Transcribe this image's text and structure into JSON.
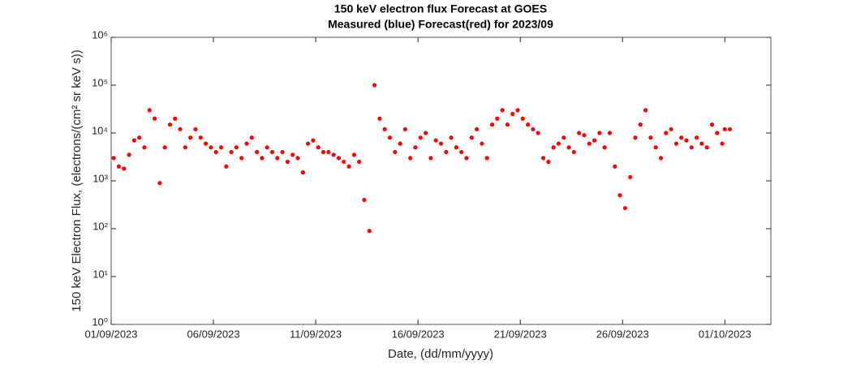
{
  "chart_data": {
    "type": "scatter",
    "title": "150 keV electron flux Forecast at GOES",
    "subtitle": "Measured (blue) Forecast(red) for 2023/09",
    "x_label": "Date, (dd/mm/yyyy)",
    "y_label": "150 keV Electron Flux, (electrons/(cm² sr keV s))",
    "log_scale_y": true,
    "xlim": [
      "2023-09-01T00:00",
      "2023-10-03T06:00"
    ],
    "ylim": [
      1,
      1000000
    ],
    "xticks": [
      {
        "value": "2023-09-01T00:00",
        "label": "01/09/2023"
      },
      {
        "value": "2023-09-06T00:00",
        "label": "06/09/2023"
      },
      {
        "value": "2023-09-11T00:00",
        "label": "11/09/2023"
      },
      {
        "value": "2023-09-16T00:00",
        "label": "16/09/2023"
      },
      {
        "value": "2023-09-21T00:00",
        "label": "21/09/2023"
      },
      {
        "value": "2023-09-26T00:00",
        "label": "26/09/2023"
      },
      {
        "value": "2023-10-01T00:00",
        "label": "01/10/2023"
      }
    ],
    "yticks": [
      {
        "value": 1,
        "label": "10⁰"
      },
      {
        "value": 10,
        "label": "10¹"
      },
      {
        "value": 100,
        "label": "10²"
      },
      {
        "value": 1000,
        "label": "10³"
      },
      {
        "value": 10000,
        "label": "10⁴"
      },
      {
        "value": 100000,
        "label": "10⁵"
      },
      {
        "value": 1000000,
        "label": "10⁶"
      }
    ],
    "series": [
      {
        "name": "Forecast",
        "color": "#ff0000",
        "x": [
          "2023-09-01T03:00",
          "2023-09-01T09:00",
          "2023-09-01T15:00",
          "2023-09-01T21:00",
          "2023-09-02T03:00",
          "2023-09-02T09:00",
          "2023-09-02T15:00",
          "2023-09-02T21:00",
          "2023-09-03T03:00",
          "2023-09-03T09:00",
          "2023-09-03T15:00",
          "2023-09-03T21:00",
          "2023-09-04T03:00",
          "2023-09-04T09:00",
          "2023-09-04T15:00",
          "2023-09-04T21:00",
          "2023-09-05T03:00",
          "2023-09-05T09:00",
          "2023-09-05T15:00",
          "2023-09-05T21:00",
          "2023-09-06T03:00",
          "2023-09-06T09:00",
          "2023-09-06T15:00",
          "2023-09-06T21:00",
          "2023-09-07T03:00",
          "2023-09-07T09:00",
          "2023-09-07T15:00",
          "2023-09-07T21:00",
          "2023-09-08T03:00",
          "2023-09-08T09:00",
          "2023-09-08T15:00",
          "2023-09-08T21:00",
          "2023-09-09T03:00",
          "2023-09-09T09:00",
          "2023-09-09T15:00",
          "2023-09-09T21:00",
          "2023-09-10T03:00",
          "2023-09-10T09:00",
          "2023-09-10T15:00",
          "2023-09-10T21:00",
          "2023-09-11T03:00",
          "2023-09-11T09:00",
          "2023-09-11T15:00",
          "2023-09-11T21:00",
          "2023-09-12T03:00",
          "2023-09-12T09:00",
          "2023-09-12T15:00",
          "2023-09-12T21:00",
          "2023-09-13T03:00",
          "2023-09-13T09:00",
          "2023-09-13T15:00",
          "2023-09-13T21:00",
          "2023-09-14T03:00",
          "2023-09-14T09:00",
          "2023-09-14T15:00",
          "2023-09-14T21:00",
          "2023-09-15T03:00",
          "2023-09-15T09:00",
          "2023-09-15T15:00",
          "2023-09-15T21:00",
          "2023-09-16T03:00",
          "2023-09-16T09:00",
          "2023-09-16T15:00",
          "2023-09-16T21:00",
          "2023-09-17T03:00",
          "2023-09-17T09:00",
          "2023-09-17T15:00",
          "2023-09-17T21:00",
          "2023-09-18T03:00",
          "2023-09-18T09:00",
          "2023-09-18T15:00",
          "2023-09-18T21:00",
          "2023-09-19T03:00",
          "2023-09-19T09:00",
          "2023-09-19T15:00",
          "2023-09-19T21:00",
          "2023-09-20T03:00",
          "2023-09-20T09:00",
          "2023-09-20T15:00",
          "2023-09-20T21:00",
          "2023-09-21T03:00",
          "2023-09-21T09:00",
          "2023-09-21T15:00",
          "2023-09-21T21:00",
          "2023-09-22T03:00",
          "2023-09-22T09:00",
          "2023-09-22T15:00",
          "2023-09-22T21:00",
          "2023-09-23T03:00",
          "2023-09-23T09:00",
          "2023-09-23T15:00",
          "2023-09-23T21:00",
          "2023-09-24T03:00",
          "2023-09-24T09:00",
          "2023-09-24T15:00",
          "2023-09-24T21:00",
          "2023-09-25T03:00",
          "2023-09-25T09:00",
          "2023-09-25T15:00",
          "2023-09-25T21:00",
          "2023-09-26T03:00",
          "2023-09-26T09:00",
          "2023-09-26T15:00",
          "2023-09-26T21:00",
          "2023-09-27T03:00",
          "2023-09-27T09:00",
          "2023-09-27T15:00",
          "2023-09-27T21:00",
          "2023-09-28T03:00",
          "2023-09-28T09:00",
          "2023-09-28T15:00",
          "2023-09-28T21:00",
          "2023-09-29T03:00",
          "2023-09-29T09:00",
          "2023-09-29T15:00",
          "2023-09-29T21:00",
          "2023-09-30T03:00",
          "2023-09-30T09:00",
          "2023-09-30T15:00",
          "2023-09-30T21:00",
          "2023-10-01T00:00",
          "2023-10-01T06:00"
        ],
        "values": [
          3000,
          2000,
          1800,
          3500,
          7000,
          8000,
          5000,
          30000,
          20000,
          900,
          5000,
          15000,
          20000,
          12000,
          5000,
          8000,
          12000,
          8000,
          6000,
          5000,
          4000,
          5000,
          2000,
          4000,
          5000,
          3000,
          6000,
          8000,
          4000,
          3000,
          5000,
          4000,
          3000,
          4000,
          2500,
          3500,
          3000,
          1500,
          6000,
          7000,
          5000,
          4000,
          4000,
          3500,
          3000,
          2500,
          2000,
          3500,
          2500,
          400,
          90,
          100000,
          20000,
          12000,
          8000,
          4000,
          6000,
          12000,
          3000,
          5000,
          8000,
          10000,
          3000,
          7000,
          6000,
          4000,
          8000,
          5000,
          4000,
          3000,
          8000,
          12000,
          6000,
          3000,
          15000,
          20000,
          30000,
          15000,
          25000,
          30000,
          20000,
          15000,
          12000,
          10000,
          3000,
          2500,
          5000,
          6000,
          8000,
          5000,
          4000,
          10000,
          9000,
          6000,
          7000,
          10000,
          5000,
          10000,
          2000,
          500,
          270,
          1200,
          8000,
          15000,
          30000,
          8000,
          5000,
          3000,
          10000,
          12000,
          6000,
          8000,
          7000,
          5000,
          8000,
          6000,
          5000,
          15000,
          10000,
          6000,
          12000,
          12000
        ]
      }
    ]
  }
}
